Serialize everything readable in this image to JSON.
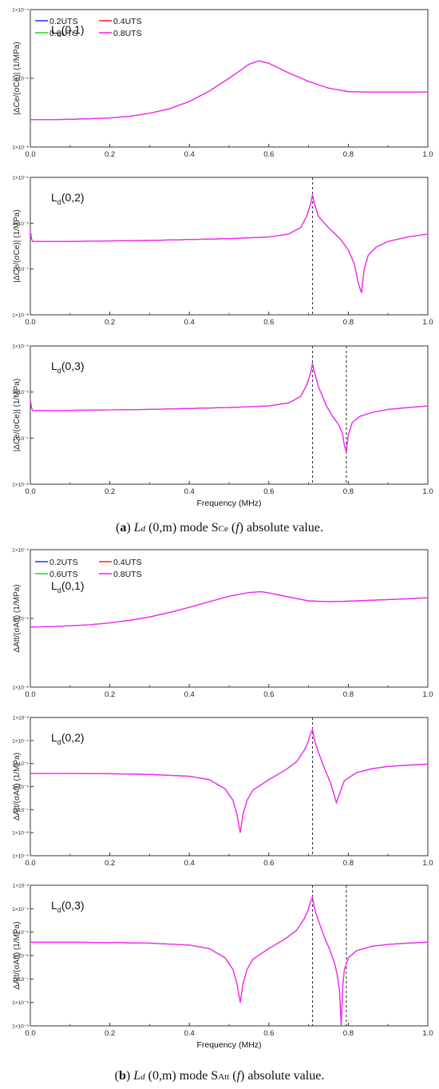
{
  "colors": {
    "0.2UTS": "#2b3bff",
    "0.4UTS": "#ff2a2a",
    "0.6UTS": "#22dd22",
    "0.8UTS": "#ff22ff"
  },
  "captions": {
    "a": {
      "label": "a",
      "ld": "L",
      "sub": "d",
      "mid": " (0,m) mode S",
      "ssub": "Ce",
      "after": " (",
      "f": "f",
      "tail": ") absolute value."
    },
    "b": {
      "label": "b",
      "ld": "L",
      "sub": "d",
      "mid": " (0,m) mode S",
      "ssub": "Att",
      "after": " (",
      "f": "f",
      "tail": ") absolute value."
    }
  },
  "chart_data": [
    {
      "type": "line",
      "panel": "a1",
      "log_y": true,
      "ylabel": "|ΔCe/(σCe)| (1/MPa)",
      "xlabel": "",
      "xlim": [
        0,
        1.0
      ],
      "ylim_exp": [
        -6,
        -4
      ],
      "yticks": [
        "1×10⁻⁶",
        "1×10⁻⁵",
        "1×10⁻⁴"
      ],
      "xticks": [
        "0.0",
        "0.2",
        "0.4",
        "0.6",
        "0.8",
        "1.0"
      ],
      "mode_label": {
        "main": "L",
        "sub": "d",
        "rest": "(0,1)"
      },
      "legend": [
        "0.2UTS",
        "0.4UTS",
        "0.6UTS",
        "0.8UTS"
      ],
      "vlines": [],
      "series": [
        {
          "name": "0.8UTS",
          "x": [
            0,
            0.05,
            0.1,
            0.15,
            0.2,
            0.25,
            0.3,
            0.35,
            0.4,
            0.45,
            0.5,
            0.55,
            0.575,
            0.6,
            0.65,
            0.7,
            0.75,
            0.8,
            0.85,
            0.9,
            0.95,
            1.0
          ],
          "y": [
            2.5e-06,
            2.5e-06,
            2.53e-06,
            2.58e-06,
            2.65e-06,
            2.8e-06,
            3.1e-06,
            3.6e-06,
            4.6e-06,
            6.5e-06,
            1e-05,
            1.6e-05,
            1.8e-05,
            1.65e-05,
            1.2e-05,
            9e-06,
            7.2e-06,
            6.4e-06,
            6.3e-06,
            6.3e-06,
            6.3e-06,
            6.3e-06
          ]
        }
      ]
    },
    {
      "type": "line",
      "panel": "a2",
      "log_y": true,
      "ylabel": "|ΔCe/(σCe)| (1/MPa)",
      "xlabel": "",
      "xlim": [
        0,
        1.0
      ],
      "ylim_exp": [
        -8,
        -5
      ],
      "yticks": [
        "1×10⁻⁸",
        "1×10⁻⁷",
        "1×10⁻⁶",
        "1×10⁻⁵"
      ],
      "xticks": [
        "0.0",
        "0.2",
        "0.4",
        "0.6",
        "0.8",
        "1.0"
      ],
      "mode_label": {
        "main": "L",
        "sub": "d",
        "rest": "(0,2)"
      },
      "legend": [],
      "vlines": [
        0.71
      ],
      "series": [
        {
          "name": "0.8UTS",
          "x": [
            0,
            0.003,
            0.006,
            0.01,
            0.05,
            0.1,
            0.2,
            0.3,
            0.4,
            0.5,
            0.6,
            0.65,
            0.68,
            0.695,
            0.705,
            0.71,
            0.715,
            0.725,
            0.75,
            0.78,
            0.8,
            0.815,
            0.825,
            0.833,
            0.84,
            0.85,
            0.87,
            0.9,
            0.95,
            1.0
          ],
          "y": [
            7e-07,
            4.5e-07,
            4e-07,
            4e-07,
            4e-07,
            4e-07,
            4.1e-07,
            4.2e-07,
            4.4e-07,
            4.6e-07,
            5e-07,
            5.8e-07,
            8e-07,
            1.4e-06,
            2.6e-06,
            4.2e-06,
            2.6e-06,
            1.4e-06,
            8e-07,
            4.5e-07,
            2.6e-07,
            1.3e-07,
            5e-08,
            3e-08,
            1e-07,
            2e-07,
            3e-07,
            4e-07,
            5e-07,
            5.8e-07
          ]
        }
      ]
    },
    {
      "type": "line",
      "panel": "a3",
      "log_y": true,
      "ylabel": "|ΔCe/(σCe)| (1/MPa)",
      "xlabel": "Frequency (MHz)",
      "xlim": [
        0,
        1.0
      ],
      "ylim_exp": [
        -8,
        -5
      ],
      "yticks": [
        "1×10⁻⁸",
        "1×10⁻⁷",
        "1×10⁻⁶",
        "1×10⁻⁵"
      ],
      "xticks": [
        "0.0",
        "0.2",
        "0.4",
        "0.6",
        "0.8",
        "1.0"
      ],
      "mode_label": {
        "main": "L",
        "sub": "d",
        "rest": "(0,3)"
      },
      "legend": [],
      "vlines": [
        0.71,
        0.795
      ],
      "series": [
        {
          "name": "0.8UTS",
          "x": [
            0,
            0.003,
            0.006,
            0.01,
            0.05,
            0.1,
            0.2,
            0.3,
            0.4,
            0.5,
            0.6,
            0.65,
            0.68,
            0.695,
            0.705,
            0.71,
            0.715,
            0.725,
            0.745,
            0.76,
            0.775,
            0.785,
            0.79,
            0.795,
            0.8,
            0.81,
            0.83,
            0.86,
            0.9,
            0.95,
            1.0
          ],
          "y": [
            7e-07,
            4.5e-07,
            4e-07,
            4e-07,
            4e-07,
            4e-07,
            4.1e-07,
            4.2e-07,
            4.4e-07,
            4.6e-07,
            5e-07,
            5.8e-07,
            8e-07,
            1.4e-06,
            2.6e-06,
            4.2e-06,
            2.6e-06,
            1.3e-06,
            5e-07,
            3e-07,
            2e-07,
            1.3e-07,
            7e-08,
            5e-08,
            1.2e-07,
            2.2e-07,
            3e-07,
            3.6e-07,
            4.2e-07,
            4.6e-07,
            5e-07
          ]
        }
      ]
    },
    {
      "type": "line",
      "panel": "b1",
      "log_y": true,
      "ylabel": "ΔAtt/(σAtt) (1/MPa)",
      "xlabel": "",
      "xlim": [
        0,
        1.0
      ],
      "ylim_exp": [
        -6,
        -4
      ],
      "yticks": [
        "1×10⁻⁶",
        "1×10⁻⁵",
        "1×10⁻⁴"
      ],
      "xticks": [
        "0.0",
        "0.2",
        "0.4",
        "0.6",
        "0.8",
        "1.0"
      ],
      "mode_label": {
        "main": "L",
        "sub": "d",
        "rest": "(0,1)"
      },
      "legend": [
        "0.2UTS",
        "0.4UTS",
        "0.6UTS",
        "0.8UTS"
      ],
      "vlines": [],
      "series": [
        {
          "name": "0.8UTS",
          "x": [
            0,
            0.05,
            0.1,
            0.15,
            0.2,
            0.25,
            0.3,
            0.35,
            0.4,
            0.45,
            0.5,
            0.55,
            0.58,
            0.6,
            0.65,
            0.7,
            0.75,
            0.8,
            0.85,
            0.9,
            0.95,
            1.0
          ],
          "y": [
            7.5e-06,
            7.6e-06,
            7.8e-06,
            8.1e-06,
            8.6e-06,
            9.4e-06,
            1.05e-05,
            1.22e-05,
            1.45e-05,
            1.75e-05,
            2.1e-05,
            2.38e-05,
            2.45e-05,
            2.35e-05,
            2.05e-05,
            1.8e-05,
            1.75e-05,
            1.78e-05,
            1.83e-05,
            1.88e-05,
            1.93e-05,
            2e-05
          ]
        }
      ]
    },
    {
      "type": "line",
      "panel": "b2",
      "log_y": true,
      "ylabel": "ΔAtt/(σAtt) (1/MPa)",
      "xlabel": "",
      "xlim": [
        0,
        1.0
      ],
      "ylim_exp": [
        -9,
        -3
      ],
      "yticks": [
        "1×10⁻⁹",
        "1×10⁻⁸",
        "1×10⁻⁷",
        "1×10⁻⁶",
        "1×10⁻⁵",
        "1×10⁻⁴",
        "1×10⁻³"
      ],
      "xticks": [
        "0.0",
        "0.2",
        "0.4",
        "0.6",
        "0.8",
        "1.0"
      ],
      "mode_label": {
        "main": "L",
        "sub": "d",
        "rest": "(0,2)"
      },
      "legend": [],
      "vlines": [
        0.71
      ],
      "series": [
        {
          "name": "0.8UTS",
          "x": [
            0,
            0.1,
            0.2,
            0.3,
            0.4,
            0.45,
            0.49,
            0.51,
            0.52,
            0.528,
            0.535,
            0.545,
            0.56,
            0.6,
            0.64,
            0.67,
            0.69,
            0.7,
            0.705,
            0.71,
            0.715,
            0.725,
            0.74,
            0.755,
            0.765,
            0.77,
            0.778,
            0.79,
            0.82,
            0.86,
            0.9,
            0.95,
            1.0
          ],
          "y": [
            3.7e-06,
            3.7e-06,
            3.6e-06,
            3.4e-06,
            2.8e-06,
            2e-06,
            8e-07,
            2.5e-07,
            6e-08,
            1e-08,
            6e-08,
            2.5e-07,
            7e-07,
            2e-06,
            5e-06,
            1.2e-05,
            4e-05,
            0.0001,
            0.0002,
            0.0003,
            0.0001,
            3e-05,
            6e-06,
            1.5e-06,
            4e-07,
            2e-07,
            5e-07,
            1.8e-06,
            4e-06,
            6e-06,
            7.5e-06,
            8.5e-06,
            9.5e-06
          ]
        }
      ]
    },
    {
      "type": "line",
      "panel": "b3",
      "log_y": true,
      "ylabel": "ΔAtt/(σAtt) (1/MPa)",
      "xlabel": "Frequency (MHz)",
      "xlim": [
        0,
        1.0
      ],
      "ylim_exp": [
        -9,
        -3
      ],
      "yticks": [
        "1×10⁻⁹",
        "1×10⁻⁸",
        "1×10⁻⁷",
        "1×10⁻⁶",
        "1×10⁻⁵",
        "1×10⁻⁴",
        "1×10⁻³"
      ],
      "xticks": [
        "0.0",
        "0.2",
        "0.4",
        "0.6",
        "0.8",
        "1.0"
      ],
      "mode_label": {
        "main": "L",
        "sub": "d",
        "rest": "(0,3)"
      },
      "legend": [],
      "vlines": [
        0.71,
        0.795
      ],
      "series": [
        {
          "name": "0.8UTS",
          "x": [
            0,
            0.1,
            0.2,
            0.3,
            0.4,
            0.45,
            0.49,
            0.51,
            0.52,
            0.528,
            0.535,
            0.545,
            0.56,
            0.6,
            0.64,
            0.67,
            0.69,
            0.7,
            0.705,
            0.71,
            0.715,
            0.725,
            0.74,
            0.755,
            0.765,
            0.772,
            0.778,
            0.782,
            0.786,
            0.79,
            0.8,
            0.82,
            0.86,
            0.9,
            0.95,
            1.0
          ],
          "y": [
            3.7e-06,
            3.7e-06,
            3.6e-06,
            3.4e-06,
            2.8e-06,
            2e-06,
            8e-07,
            2.5e-07,
            6e-08,
            1e-08,
            6e-08,
            2.5e-07,
            7e-07,
            2e-06,
            5e-06,
            1.2e-05,
            4e-05,
            0.0001,
            0.0002,
            0.0003,
            0.0001,
            3e-05,
            6e-06,
            1.5e-06,
            5e-07,
            1.5e-07,
            3e-08,
            1e-09,
            5e-08,
            2.5e-07,
            8e-07,
            1.6e-06,
            2.5e-06,
            3e-06,
            3.4e-06,
            3.7e-06
          ]
        }
      ]
    }
  ]
}
